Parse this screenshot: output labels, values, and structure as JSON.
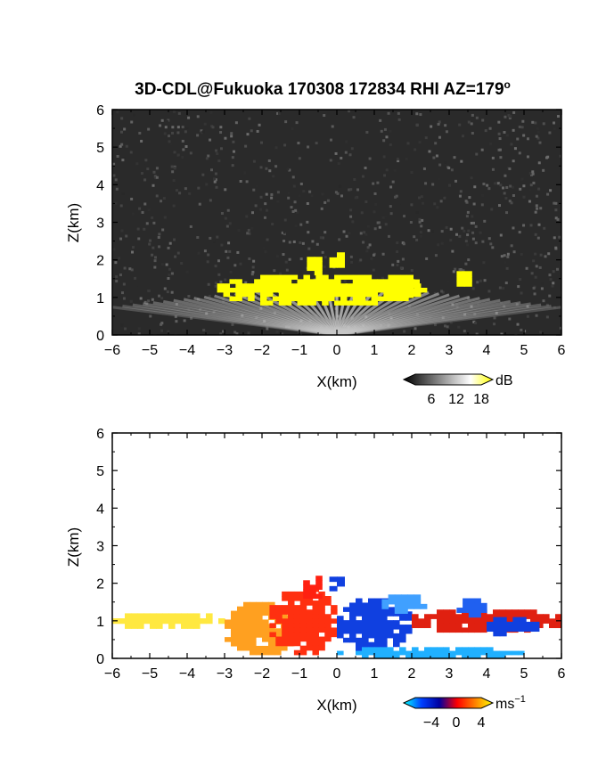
{
  "title": "3D-CDL@Fukuoka 170308 172834 RHI AZ=179",
  "title_superscript": "o",
  "chart_data": [
    {
      "type": "heatmap",
      "panel": "top",
      "quantity": "signal",
      "xlabel": "X(km)",
      "ylabel": "Z(km)",
      "xlim": [
        -6,
        6
      ],
      "ylim": [
        0,
        6
      ],
      "xticks": [
        "−6",
        "−5",
        "−4",
        "−3",
        "−2",
        "−1",
        "0",
        "1",
        "2",
        "3",
        "4",
        "5",
        "6"
      ],
      "yticks": [
        "0",
        "1",
        "2",
        "3",
        "4",
        "5",
        "6"
      ],
      "background": "#2a2a2a",
      "colorbar": {
        "unit": "dB",
        "ticks": [
          "6",
          "12",
          "18"
        ],
        "range": [
          0,
          20
        ],
        "colors": [
          "#000000",
          "#555555",
          "#aaaaaa",
          "#ffffff",
          "#ffff00"
        ]
      },
      "features": [
        {
          "kind": "fan",
          "label": "gray radial beams",
          "apex": [
            0,
            0
          ],
          "x_range": [
            -6,
            6
          ],
          "z_top": [
            0.3,
            1.4
          ],
          "color": "#c8c8c8"
        },
        {
          "kind": "patch",
          "label": "high echo band",
          "x": [
            -3.2,
            2.4
          ],
          "z": [
            0.8,
            1.6
          ],
          "color": "#ffff00"
        },
        {
          "kind": "patch",
          "label": "cell",
          "x": [
            -0.8,
            -0.4
          ],
          "z": [
            1.6,
            2.2
          ],
          "color": "#ffff00"
        },
        {
          "kind": "patch",
          "label": "cell",
          "x": [
            -0.2,
            0.2
          ],
          "z": [
            1.8,
            2.2
          ],
          "color": "#ffff00"
        },
        {
          "kind": "patch",
          "label": "cell",
          "x": [
            1.2,
            2.2
          ],
          "z": [
            1.0,
            1.6
          ],
          "color": "#ffff00"
        },
        {
          "kind": "patch",
          "label": "cell",
          "x": [
            3.2,
            3.6
          ],
          "z": [
            1.3,
            1.7
          ],
          "color": "#ffff00"
        }
      ]
    },
    {
      "type": "heatmap",
      "panel": "bottom",
      "quantity": "radial velocity",
      "xlabel": "X(km)",
      "ylabel": "Z(km)",
      "xlim": [
        -6,
        6
      ],
      "ylim": [
        0,
        6
      ],
      "xticks": [
        "−6",
        "−5",
        "−4",
        "−3",
        "−2",
        "−1",
        "0",
        "1",
        "2",
        "3",
        "4",
        "5",
        "6"
      ],
      "yticks": [
        "0",
        "1",
        "2",
        "3",
        "4",
        "5",
        "6"
      ],
      "background": "#ffffff",
      "colorbar": {
        "unit": "ms",
        "unit_superscript": "−1",
        "ticks": [
          "−4",
          "0",
          "4"
        ],
        "range": [
          -6,
          6
        ],
        "colors": [
          "#00ffff",
          "#0040ff",
          "#0000a0",
          "#ff0000",
          "#ff8000",
          "#ffff00"
        ]
      },
      "features": [
        {
          "kind": "patch",
          "label": "yellow",
          "x": [
            -6.0,
            -3.0
          ],
          "z": [
            0.8,
            1.2
          ],
          "color": "#ffe840"
        },
        {
          "kind": "patch",
          "label": "orange",
          "x": [
            -3.0,
            -1.0
          ],
          "z": [
            0.1,
            1.5
          ],
          "color": "#ffa020"
        },
        {
          "kind": "patch",
          "label": "red",
          "x": [
            -1.8,
            0.0
          ],
          "z": [
            0.1,
            1.9
          ],
          "color": "#ff3010"
        },
        {
          "kind": "patch",
          "label": "red cell",
          "x": [
            -0.9,
            -0.4
          ],
          "z": [
            1.6,
            2.2
          ],
          "color": "#ff2010"
        },
        {
          "kind": "patch",
          "label": "blue cell",
          "x": [
            -0.2,
            0.2
          ],
          "z": [
            1.8,
            2.3
          ],
          "color": "#1040e0"
        },
        {
          "kind": "patch",
          "label": "blue",
          "x": [
            0.0,
            2.0
          ],
          "z": [
            0.2,
            1.6
          ],
          "color": "#1040e0"
        },
        {
          "kind": "patch",
          "label": "cyan",
          "x": [
            0.0,
            5.0
          ],
          "z": [
            0.0,
            0.3
          ],
          "color": "#20b0ff"
        },
        {
          "kind": "patch",
          "label": "light blue",
          "x": [
            1.2,
            2.4
          ],
          "z": [
            1.2,
            1.7
          ],
          "color": "#40a0ff"
        },
        {
          "kind": "patch",
          "label": "red",
          "x": [
            2.0,
            6.0
          ],
          "z": [
            0.7,
            1.3
          ],
          "color": "#e02010"
        },
        {
          "kind": "patch",
          "label": "blue",
          "x": [
            3.2,
            4.0
          ],
          "z": [
            1.1,
            1.6
          ],
          "color": "#2060f0"
        },
        {
          "kind": "patch",
          "label": "blue",
          "x": [
            4.0,
            5.4
          ],
          "z": [
            0.6,
            1.1
          ],
          "color": "#1040e0"
        }
      ]
    }
  ]
}
